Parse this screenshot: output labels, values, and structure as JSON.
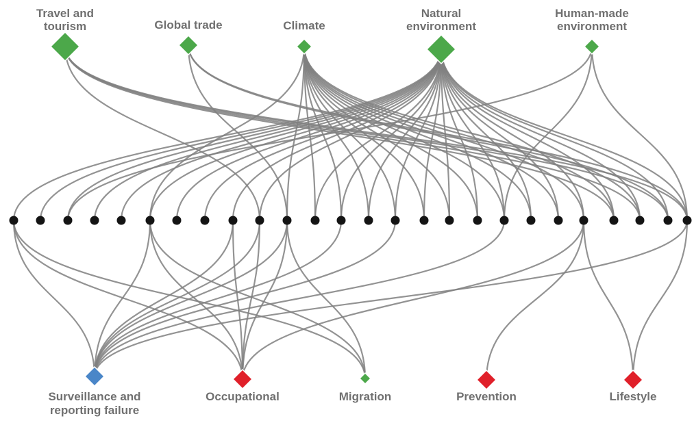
{
  "colors": {
    "green": "#4ca84a",
    "red": "#e0202a",
    "blue": "#4a86c8",
    "node": "#141414",
    "edge": "#808080",
    "label": "#707070"
  },
  "top_nodes": [
    {
      "id": "travel",
      "lines": [
        "Travel and",
        "tourism"
      ],
      "color": "green",
      "size": "large"
    },
    {
      "id": "trade",
      "lines": [
        "Global trade"
      ],
      "color": "green",
      "size": "medium"
    },
    {
      "id": "climate",
      "lines": [
        "Climate"
      ],
      "color": "green",
      "size": "small"
    },
    {
      "id": "natural",
      "lines": [
        "Natural",
        "environment"
      ],
      "color": "green",
      "size": "large"
    },
    {
      "id": "human",
      "lines": [
        "Human-made",
        "environment"
      ],
      "color": "green",
      "size": "small"
    }
  ],
  "bottom_nodes": [
    {
      "id": "surveillance",
      "lines": [
        "Surveillance and",
        "reporting failure"
      ],
      "color": "blue",
      "size": "medium"
    },
    {
      "id": "occupational",
      "lines": [
        "Occupational"
      ],
      "color": "red",
      "size": "medium"
    },
    {
      "id": "migration",
      "lines": [
        "Migration"
      ],
      "color": "green",
      "size": "tiny"
    },
    {
      "id": "prevention",
      "lines": [
        "Prevention"
      ],
      "color": "red",
      "size": "medium"
    },
    {
      "id": "lifestyle",
      "lines": [
        "Lifestyle"
      ],
      "color": "red",
      "size": "medium"
    }
  ],
  "middle_node_count": 26,
  "edges_top": [
    [
      "travel",
      22
    ],
    [
      "travel",
      23
    ],
    [
      "travel",
      24
    ],
    [
      "travel",
      25
    ],
    [
      "travel",
      9
    ],
    [
      "trade",
      10
    ],
    [
      "trade",
      25
    ],
    [
      "trade",
      24
    ],
    [
      "climate",
      5
    ],
    [
      "climate",
      10
    ],
    [
      "climate",
      11
    ],
    [
      "climate",
      12
    ],
    [
      "climate",
      13
    ],
    [
      "climate",
      14
    ],
    [
      "climate",
      15
    ],
    [
      "climate",
      16
    ],
    [
      "climate",
      17
    ],
    [
      "climate",
      18
    ],
    [
      "climate",
      19
    ],
    [
      "climate",
      20
    ],
    [
      "climate",
      21
    ],
    [
      "climate",
      22
    ],
    [
      "climate",
      23
    ],
    [
      "natural",
      0
    ],
    [
      "natural",
      1
    ],
    [
      "natural",
      2
    ],
    [
      "natural",
      3
    ],
    [
      "natural",
      4
    ],
    [
      "natural",
      5
    ],
    [
      "natural",
      6
    ],
    [
      "natural",
      7
    ],
    [
      "natural",
      8
    ],
    [
      "natural",
      9
    ],
    [
      "natural",
      11
    ],
    [
      "natural",
      12
    ],
    [
      "natural",
      13
    ],
    [
      "natural",
      14
    ],
    [
      "natural",
      15
    ],
    [
      "natural",
      16
    ],
    [
      "natural",
      17
    ],
    [
      "natural",
      18
    ],
    [
      "natural",
      19
    ],
    [
      "natural",
      20
    ],
    [
      "natural",
      21
    ],
    [
      "natural",
      22
    ],
    [
      "natural",
      23
    ],
    [
      "natural",
      24
    ],
    [
      "natural",
      25
    ],
    [
      "human",
      2
    ],
    [
      "human",
      18
    ],
    [
      "human",
      25
    ]
  ],
  "edges_bottom": [
    [
      0,
      "surveillance"
    ],
    [
      0,
      "occupational"
    ],
    [
      0,
      "migration"
    ],
    [
      5,
      "surveillance"
    ],
    [
      5,
      "occupational"
    ],
    [
      5,
      "migration"
    ],
    [
      8,
      "surveillance"
    ],
    [
      8,
      "occupational"
    ],
    [
      9,
      "surveillance"
    ],
    [
      9,
      "occupational"
    ],
    [
      10,
      "surveillance"
    ],
    [
      10,
      "occupational"
    ],
    [
      10,
      "migration"
    ],
    [
      12,
      "surveillance"
    ],
    [
      14,
      "surveillance"
    ],
    [
      18,
      "surveillance"
    ],
    [
      21,
      "occupational"
    ],
    [
      21,
      "prevention"
    ],
    [
      21,
      "lifestyle"
    ],
    [
      25,
      "surveillance"
    ],
    [
      25,
      "lifestyle"
    ]
  ]
}
